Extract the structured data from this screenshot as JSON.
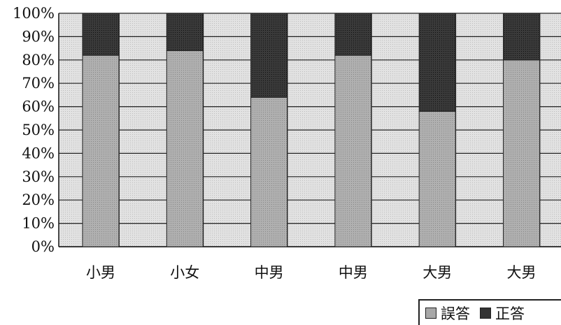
{
  "chart_data": {
    "type": "bar",
    "stacked": true,
    "normalized_percent": true,
    "categories": [
      "小男",
      "小女",
      "中男",
      "中男",
      "大男",
      "大男"
    ],
    "series": [
      {
        "name": "誤答",
        "values": [
          82,
          84,
          64,
          82,
          58,
          80
        ],
        "color": "#a8a8a8"
      },
      {
        "name": "正答",
        "values": [
          18,
          16,
          36,
          18,
          42,
          20
        ],
        "color": "#3c3c3c"
      }
    ],
    "y_ticks": [
      "0%",
      "10%",
      "20%",
      "30%",
      "40%",
      "50%",
      "60%",
      "70%",
      "80%",
      "90%",
      "100%"
    ],
    "ylim": [
      0,
      100
    ],
    "grid": true,
    "legend_position": "bottom-right",
    "plot_background": "#dcdcdc"
  }
}
